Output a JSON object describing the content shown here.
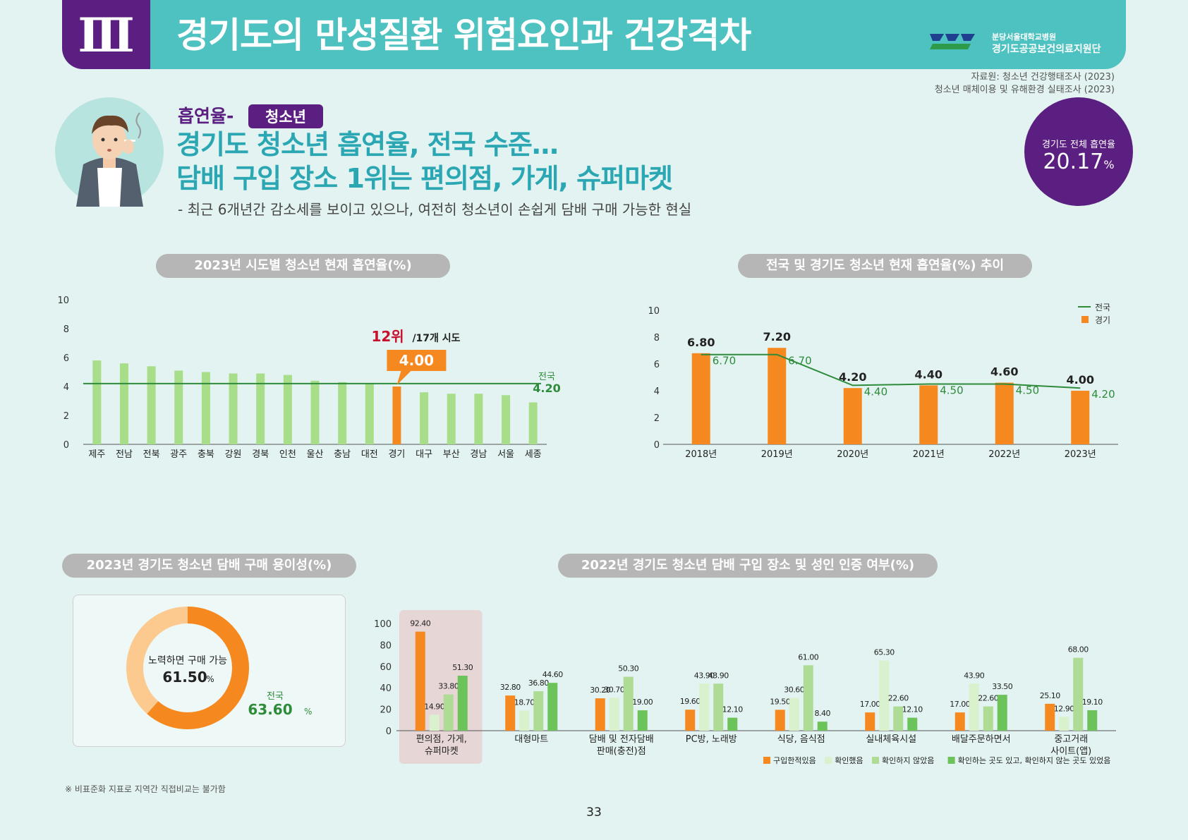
{
  "header": {
    "section": "Ⅲ",
    "title": "경기도의 만성질환 위험요인과 건강격차",
    "org_hospital": "분당서울대학교병원",
    "org_name": "경기도공공보건의료지원단"
  },
  "source": {
    "line1": "자료원: 청소년 건강행태조사 (2023)",
    "line2": "청소년 매체이용 및 유해환경 실태조사 (2023)"
  },
  "topic": {
    "category": "흡연율-",
    "tag": "청소년",
    "headline1": "경기도 청소년 흡연율, 전국 수준…",
    "headline2": "담배 구입 장소 1위는 편의점, 가게, 슈퍼마켓",
    "subtitle": "- 최근 6개년간 감소세를 보이고 있으나, 여전히 청소년이 손쉽게 담배 구매 가능한 현실"
  },
  "badge": {
    "label": "경기도 전체 흡연율",
    "value": "20.17",
    "unit": "%"
  },
  "colors": {
    "purple": "#5b1f82",
    "teal": "#4ec2c0",
    "orange": "#f5891f",
    "light_green": "#a8dd8a",
    "green_line": "#2e8b3a"
  },
  "chart_data": [
    {
      "type": "bar",
      "title": "2023년 시도별 청소년 현재 흡연율(%)",
      "categories": [
        "제주",
        "전남",
        "전북",
        "광주",
        "충북",
        "강원",
        "경북",
        "인천",
        "울산",
        "충남",
        "대전",
        "경기",
        "대구",
        "부산",
        "경남",
        "서울",
        "세종"
      ],
      "values": [
        5.8,
        5.6,
        5.4,
        5.1,
        5.0,
        4.9,
        4.9,
        4.8,
        4.4,
        4.3,
        4.2,
        4.0,
        3.6,
        3.5,
        3.5,
        3.4,
        2.9
      ],
      "highlight_category": "경기",
      "highlight_value": "4.00",
      "rank_text": "12위",
      "rank_suffix": "/17개 시도",
      "reference_line": {
        "label": "전국",
        "value": "4.20"
      },
      "yticks": [
        "0",
        "2",
        "4",
        "6",
        "8",
        "10"
      ],
      "ylim": [
        0,
        10
      ]
    },
    {
      "type": "bar+line",
      "title": "전국 및 경기도 청소년 현재 흡연율(%) 추이",
      "categories": [
        "2018년",
        "2019년",
        "2020년",
        "2021년",
        "2022년",
        "2023년"
      ],
      "series": [
        {
          "name": "경기",
          "values": [
            "6.80",
            "7.20",
            "4.20",
            "4.40",
            "4.60",
            "4.00"
          ]
        },
        {
          "name": "전국",
          "values": [
            "6.70",
            "6.70",
            "4.40",
            "4.50",
            "4.50",
            "4.20"
          ]
        }
      ],
      "yticks": [
        "0",
        "2",
        "4",
        "6",
        "8",
        "10"
      ],
      "ylim": [
        0,
        10
      ],
      "legend": "top-right"
    },
    {
      "type": "pie",
      "title": "2023년 경기도 청소년 담배 구매 용이성(%)",
      "label": "노력하면 구매 가능",
      "value": "61.50",
      "unit": "%",
      "national_label": "전국",
      "national_value": "63.60"
    },
    {
      "type": "bar",
      "title": "2022년 경기도 청소년 담배 구입 장소 및 성인 인증 여부(%)",
      "categories": [
        [
          "편의점, 가게,",
          "슈퍼마켓"
        ],
        [
          "대형마트"
        ],
        [
          "담배 및 전자담배",
          "판매(충전)점"
        ],
        [
          "PC방, 노래방"
        ],
        [
          "식당, 음식점"
        ],
        [
          "실내체육시설"
        ],
        [
          "배달주문하면서"
        ],
        [
          "중고거래",
          "사이트(앱)"
        ]
      ],
      "series": [
        {
          "name": "구입한적있음",
          "values": [
            "92.40",
            "32.80",
            "30.20",
            "19.60",
            "19.50",
            "17.00",
            "17.00",
            "25.10"
          ]
        },
        {
          "name": "확인했음",
          "values": [
            "14.90",
            "18.70",
            "30.70",
            "43.90",
            "30.60",
            "65.30",
            "43.90",
            "12.90"
          ]
        },
        {
          "name": "확인하지 않았음",
          "values": [
            "33.80",
            "36.80",
            "50.30",
            "43.90",
            "61.00",
            "22.60",
            "22.60",
            "68.00"
          ]
        },
        {
          "name": "확인하는 곳도 있고, 확인하지 않는 곳도 있었음",
          "values": [
            "51.30",
            "44.60",
            "19.00",
            "12.10",
            "8.40",
            "12.10",
            "33.50",
            "19.10"
          ]
        }
      ],
      "yticks": [
        "0",
        "20",
        "40",
        "60",
        "80",
        "100"
      ],
      "ylim": [
        0,
        100
      ],
      "legend": "bottom-right"
    }
  ],
  "footnote": "※ 비표준화 지표로 지역간 직접비교는 불가함",
  "page_number": "33"
}
